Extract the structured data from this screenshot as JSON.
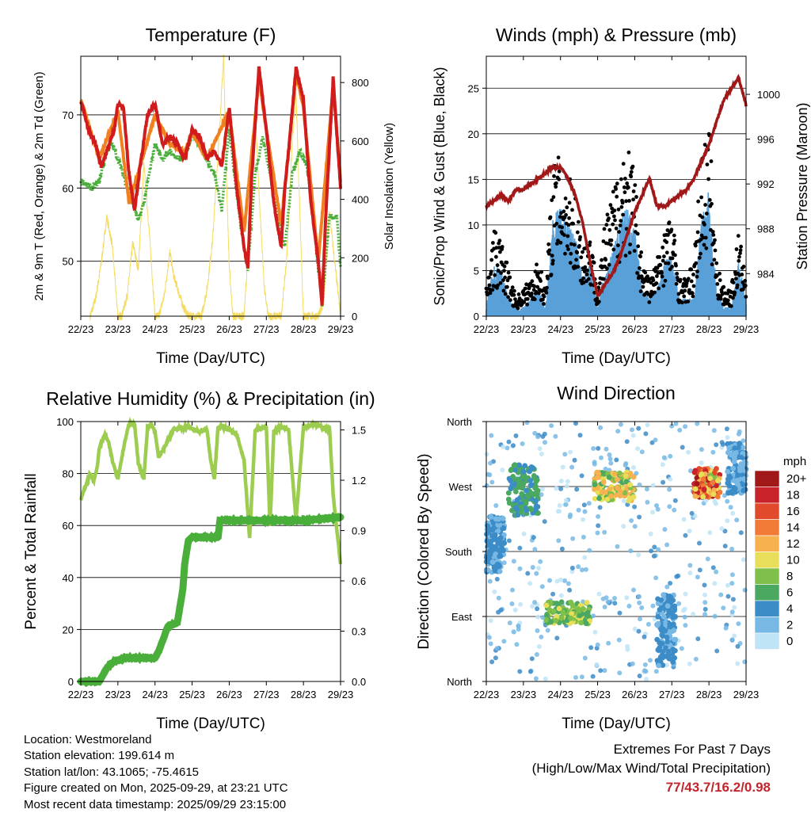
{
  "x_ticks": [
    "22/23",
    "23/23",
    "24/23",
    "25/23",
    "26/23",
    "27/23",
    "28/23",
    "29/23"
  ],
  "chart_data": [
    {
      "type": "line",
      "title": "Temperature (F)",
      "xlabel": "Time (Day/UTC)",
      "ylabel": "2m & 9m T (Red, Orange) & 2m Td (Green)",
      "ylabel_right": "Solar Insolation (Yellow)",
      "ylim": [
        42.5,
        78
      ],
      "yticks": [
        50,
        60,
        70
      ],
      "ylim_right": [
        0,
        890
      ],
      "yticks_right": [
        0,
        200,
        400,
        600,
        800
      ],
      "x_days": [
        22,
        29
      ],
      "colors": {
        "t2m": "#d01c1c",
        "t9m": "#f08020",
        "td": "#4aae3a",
        "solar": "#f5dc60"
      },
      "series": [
        {
          "name": "2m T",
          "x": [
            22.0,
            22.2,
            22.4,
            22.55,
            22.7,
            22.9,
            23.0,
            23.15,
            23.3,
            23.45,
            23.6,
            23.8,
            24.0,
            24.2,
            24.4,
            24.6,
            24.8,
            25.0,
            25.2,
            25.4,
            25.6,
            25.8,
            26.0,
            26.2,
            26.4,
            26.5,
            26.6,
            26.8,
            27.0,
            27.2,
            27.4,
            27.5,
            27.6,
            27.8,
            28.0,
            28.2,
            28.4,
            28.5,
            28.6,
            28.8,
            29.0
          ],
          "values": [
            72,
            68,
            66,
            63,
            65,
            68,
            71.5,
            71,
            62,
            57,
            63,
            70,
            71.5,
            66,
            67,
            66,
            64,
            68,
            67,
            64,
            65,
            63,
            71,
            60,
            52,
            49,
            61,
            76.5,
            68,
            58,
            52,
            60,
            65,
            76.5,
            72,
            58,
            50,
            44,
            56,
            75,
            60
          ]
        },
        {
          "name": "9m T",
          "x": [
            22.0,
            22.5,
            22.8,
            23.0,
            23.3,
            23.6,
            24.0,
            24.4,
            24.8,
            25.0,
            25.4,
            26.0,
            26.4,
            26.8,
            27.0,
            27.4,
            27.8,
            28.0,
            28.4,
            28.8,
            29.0
          ],
          "values": [
            72,
            64,
            68,
            70.5,
            58,
            63,
            70,
            66,
            65,
            67.5,
            64,
            70.5,
            54,
            75,
            68,
            55,
            75.5,
            71,
            50,
            74,
            61
          ]
        },
        {
          "name": "2m Td",
          "x": [
            22.0,
            22.3,
            22.5,
            22.7,
            22.85,
            23.0,
            23.2,
            23.4,
            23.55,
            23.7,
            24.0,
            24.2,
            24.4,
            24.6,
            24.8,
            25.0,
            25.3,
            25.6,
            25.8,
            26.0,
            26.3,
            26.5,
            26.7,
            26.9,
            27.1,
            27.3,
            27.5,
            27.7,
            27.9,
            28.1,
            28.3,
            28.5,
            28.7,
            28.9,
            29.0
          ],
          "values": [
            61,
            60,
            61,
            65,
            66,
            64,
            61,
            58,
            55.5,
            58,
            66,
            64,
            65,
            64,
            64,
            67.5,
            65,
            62,
            57,
            68,
            55,
            49,
            62,
            67,
            62,
            56,
            52,
            62,
            65,
            63,
            54,
            44,
            56,
            56,
            49
          ]
        },
        {
          "name": "Solar Insolation",
          "x": [
            22.25,
            22.4,
            22.55,
            22.7,
            22.85,
            23.0,
            23.1,
            23.25,
            23.4,
            23.55,
            23.7,
            23.85,
            24.0,
            24.1,
            24.25,
            24.4,
            24.5,
            24.62,
            24.75,
            24.9,
            25.05,
            25.25,
            25.4,
            25.55,
            25.7,
            25.85,
            25.92,
            26.0,
            26.1,
            26.25,
            26.4,
            26.55,
            26.7,
            26.82,
            26.95,
            27.05,
            27.25,
            27.4,
            27.55,
            27.7,
            27.8,
            27.9,
            28.0,
            28.1,
            28.25,
            28.4,
            28.55,
            28.7,
            28.82,
            28.95,
            29.0
          ],
          "values": [
            0,
            60,
            180,
            340,
            240,
            0,
            0,
            70,
            250,
            160,
            520,
            280,
            0,
            0,
            70,
            220,
            140,
            90,
            35,
            0,
            0,
            0,
            90,
            260,
            560,
            890,
            500,
            170,
            0,
            0,
            0,
            300,
            700,
            380,
            90,
            0,
            0,
            0,
            200,
            600,
            760,
            370,
            0,
            0,
            0,
            0,
            50,
            360,
            210,
            60,
            0
          ]
        }
      ]
    },
    {
      "type": "scatter",
      "title": "Winds (mph) & Pressure (mb)",
      "xlabel": "Time (Day/UTC)",
      "ylabel": "Sonic/Prop Wind & Gust (Blue, Black)",
      "ylabel_right": "Station Pressure (Maroon)",
      "ylim": [
        0,
        28.5
      ],
      "yticks": [
        0,
        5,
        10,
        15,
        20,
        25
      ],
      "ylim_right": [
        980.2,
        1003.4
      ],
      "yticks_right": [
        984,
        988,
        992,
        996,
        1000
      ],
      "x_days": [
        22,
        29
      ],
      "colors": {
        "wind": "#5aa0d8",
        "gust": "#000000",
        "pressure": "#a01818"
      },
      "series": [
        {
          "name": "Wind (envelope)",
          "x": [
            22.0,
            22.2,
            22.4,
            22.6,
            22.8,
            23.0,
            23.2,
            23.4,
            23.6,
            23.8,
            24.0,
            24.2,
            24.4,
            24.6,
            24.8,
            25.0,
            25.2,
            25.4,
            25.6,
            25.8,
            26.0,
            26.2,
            26.4,
            26.6,
            26.8,
            27.0,
            27.2,
            27.4,
            27.6,
            27.8,
            28.0,
            28.2,
            28.4,
            28.6,
            28.8,
            29.0
          ],
          "values": [
            1,
            6,
            5,
            2,
            1,
            1,
            2,
            3,
            1,
            11,
            12,
            10,
            9,
            4,
            6,
            1,
            5,
            7,
            11,
            12,
            10,
            3,
            2,
            3,
            6,
            7,
            2,
            2,
            2,
            11,
            14,
            3,
            1,
            1,
            6,
            2
          ]
        },
        {
          "name": "Gust (envelope)",
          "x": [
            22.0,
            22.2,
            22.4,
            22.6,
            22.8,
            23.0,
            23.2,
            23.4,
            23.6,
            23.8,
            24.0,
            24.2,
            24.4,
            24.6,
            24.8,
            25.0,
            25.2,
            25.4,
            25.6,
            25.8,
            26.0,
            26.2,
            26.4,
            26.6,
            26.8,
            27.0,
            27.2,
            27.4,
            27.6,
            27.8,
            28.0,
            28.2,
            28.4,
            28.6,
            28.8,
            29.0
          ],
          "values": [
            3,
            9,
            8,
            5,
            2,
            3,
            4,
            6,
            3,
            16,
            17,
            15,
            13,
            8,
            9,
            3,
            10,
            13,
            17,
            19,
            15,
            6,
            4,
            6,
            10,
            11,
            4,
            4,
            6,
            17,
            21,
            6,
            3,
            3,
            9,
            4
          ]
        },
        {
          "name": "Station Pressure",
          "x": [
            22.0,
            22.2,
            22.4,
            22.6,
            22.8,
            23.0,
            23.2,
            23.4,
            23.6,
            23.8,
            24.0,
            24.2,
            24.4,
            24.6,
            24.8,
            25.0,
            25.2,
            25.4,
            25.6,
            25.8,
            26.0,
            26.2,
            26.4,
            26.6,
            26.8,
            27.0,
            27.2,
            27.4,
            27.6,
            27.8,
            28.0,
            28.2,
            28.4,
            28.6,
            28.8,
            29.0
          ],
          "values": [
            990,
            990.5,
            991,
            990.5,
            991.5,
            991.5,
            992,
            992.5,
            993,
            993.5,
            993.5,
            992.5,
            991,
            988.5,
            985,
            982,
            983,
            984,
            985.5,
            987.5,
            989.5,
            991,
            992.5,
            990,
            990,
            990.5,
            991,
            991.5,
            992.5,
            994,
            995.5,
            997.5,
            999.5,
            1000.5,
            1001.5,
            999
          ]
        }
      ]
    },
    {
      "type": "line",
      "title": "Relative Humidity (%) & Precipitation (in)",
      "xlabel": "Time (Day/UTC)",
      "ylabel": "Percent & Total Rainfall",
      "ylim": [
        0,
        100
      ],
      "yticks": [
        0,
        20,
        40,
        60,
        80,
        100
      ],
      "ylim_right": [
        0,
        1.55
      ],
      "yticks_right": [
        "0.0",
        "0.3",
        "0.6",
        "0.9",
        "1.2",
        "1.5"
      ],
      "x_days": [
        22,
        29
      ],
      "colors": {
        "rh": "#9ccc50",
        "precip": "#4aae3a"
      },
      "series": [
        {
          "name": "Relative Humidity",
          "x": [
            22.0,
            22.1,
            22.25,
            22.35,
            22.45,
            22.5,
            22.65,
            22.75,
            22.85,
            23.0,
            23.2,
            23.3,
            23.45,
            23.55,
            23.7,
            23.8,
            23.9,
            24.0,
            24.1,
            24.5,
            24.9,
            25.2,
            25.4,
            25.5,
            25.6,
            25.7,
            25.8,
            26.0,
            26.2,
            26.4,
            26.5,
            26.55,
            26.7,
            27.0,
            27.1,
            27.2,
            27.4,
            27.6,
            27.8,
            28.0,
            28.3,
            28.5,
            28.6,
            28.7,
            28.8,
            29.0
          ],
          "values": [
            70,
            74,
            80,
            77,
            83,
            90,
            95,
            92,
            85,
            78,
            93,
            99,
            99,
            84,
            78,
            98,
            99,
            96,
            86,
            97,
            98,
            96,
            97,
            85,
            78,
            98,
            98,
            97,
            95,
            85,
            65,
            55,
            97,
            98,
            60,
            96,
            98,
            97,
            62,
            98,
            99,
            98,
            97,
            98,
            72,
            45
          ]
        },
        {
          "name": "Total Precipitation",
          "x": [
            22.0,
            22.5,
            22.55,
            22.7,
            22.9,
            23.2,
            23.5,
            23.8,
            24.0,
            24.1,
            24.35,
            24.6,
            24.75,
            24.8,
            24.9,
            25.0,
            25.3,
            25.7,
            25.75,
            26.0,
            27.0,
            28.0,
            29.0
          ],
          "values": [
            0,
            0,
            0.02,
            0.08,
            0.12,
            0.14,
            0.14,
            0.14,
            0.14,
            0.18,
            0.33,
            0.35,
            0.55,
            0.7,
            0.84,
            0.86,
            0.86,
            0.86,
            0.96,
            0.96,
            0.96,
            0.96,
            0.98
          ]
        }
      ]
    },
    {
      "type": "scatter",
      "title": "Wind Direction",
      "xlabel": "Time (Day/UTC)",
      "ylabel": "Direction (Colored By Speed)",
      "yticks": [
        "North",
        "East",
        "South",
        "West",
        "North"
      ],
      "ylim": [
        0,
        360
      ],
      "x_days": [
        22,
        29
      ],
      "legend_title": "mph",
      "legend_labels": [
        "20+",
        "18",
        "16",
        "14",
        "12",
        "10",
        "8",
        "6",
        "4",
        "2",
        "0"
      ],
      "legend_colors": [
        "#a01818",
        "#c8222a",
        "#e24a2c",
        "#f07a36",
        "#f7b250",
        "#e8de5a",
        "#7ec04a",
        "#4aa860",
        "#3c8cc8",
        "#78b8e4",
        "#bfe4f6"
      ],
      "clusters": [
        {
          "x": [
            22.0,
            22.5
          ],
          "dir": [
            150,
            230
          ],
          "speed": [
            2,
            5
          ]
        },
        {
          "x": [
            22.6,
            23.4
          ],
          "dir": [
            230,
            300
          ],
          "speed": [
            4,
            7
          ]
        },
        {
          "x": [
            23.6,
            24.8
          ],
          "dir": [
            80,
            110
          ],
          "speed": [
            5,
            11
          ]
        },
        {
          "x": [
            24.9,
            26.0
          ],
          "dir": [
            250,
            290
          ],
          "speed": [
            6,
            13
          ]
        },
        {
          "x": [
            26.6,
            27.1
          ],
          "dir": [
            20,
            120
          ],
          "speed": [
            2,
            5
          ]
        },
        {
          "x": [
            27.6,
            28.3
          ],
          "dir": [
            255,
            295
          ],
          "speed": [
            8,
            20
          ]
        },
        {
          "x": [
            28.5,
            29.0
          ],
          "dir": [
            260,
            330
          ],
          "speed": [
            1,
            5
          ]
        }
      ]
    }
  ],
  "footer": {
    "location": "Location: Westmoreland",
    "elevation": "Station elevation: 199.614 m",
    "latlon": "Station lat/lon: 43.1065; -75.4615",
    "created": "Figure created on Mon, 2025-09-29, at 23:21 UTC",
    "recent": "Most recent data timestamp: 2025/09/29 23:15:00"
  },
  "extremes": {
    "title": "Extremes For Past 7 Days",
    "subtitle": "(High/Low/Max Wind/Total Precipitation)",
    "values": "77/43.7/16.2/0.98"
  }
}
